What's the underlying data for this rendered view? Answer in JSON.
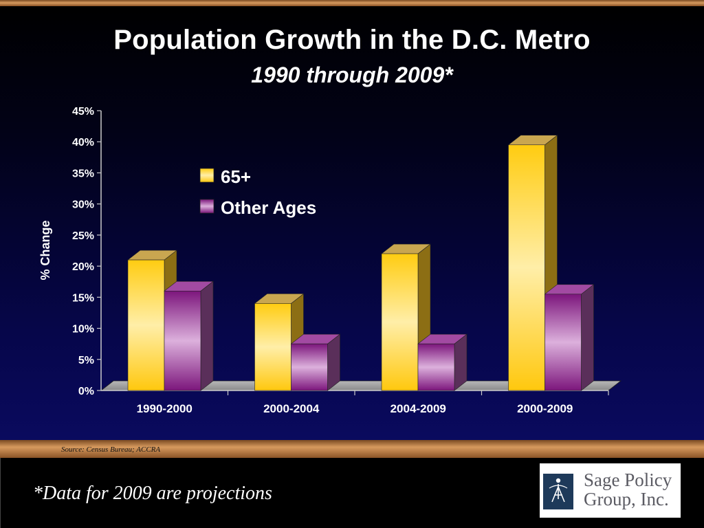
{
  "slide": {
    "title": "Population Growth in the D.C. Metro",
    "subtitle": "1990 through 2009*",
    "source": "Source: Census Bureau; ACCRA",
    "footnote": "*Data for 2009 are projections",
    "logo": {
      "line1": "Sage Policy",
      "line2": "Group, Inc.",
      "icon": "sage-figure-icon"
    }
  },
  "colors": {
    "background": "#06064a",
    "series_65plus": "#ffcc22",
    "series_other": "#9a3a9a",
    "accent_bar": "#c8843f"
  },
  "chart_data": {
    "type": "bar",
    "title": "Population Growth in the D.C. Metro",
    "subtitle": "1990 through 2009*",
    "ylabel": "% Change",
    "xlabel": "",
    "ylim": [
      0,
      45
    ],
    "yticks": [
      "0%",
      "5%",
      "10%",
      "15%",
      "20%",
      "25%",
      "30%",
      "35%",
      "40%",
      "45%"
    ],
    "categories": [
      "1990-2000",
      "2000-2004",
      "2004-2009",
      "2000-2009"
    ],
    "series": [
      {
        "name": "65+",
        "values": [
          21,
          14,
          22,
          39.5
        ]
      },
      {
        "name": "Other Ages",
        "values": [
          16,
          7.5,
          7.5,
          15.5
        ]
      }
    ],
    "legend": "upper-left",
    "grid": false,
    "style": "3d-bar"
  }
}
